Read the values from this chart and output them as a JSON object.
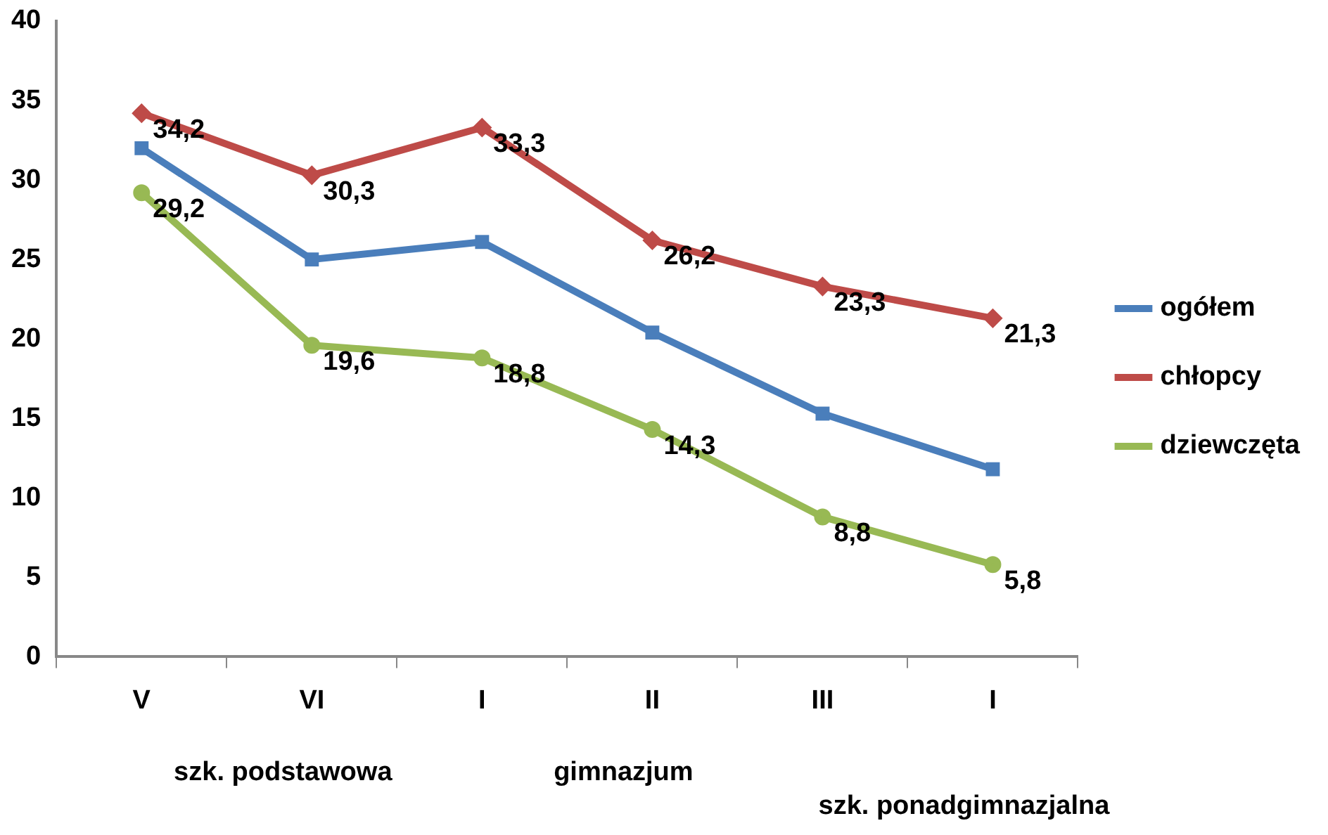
{
  "chart_data": {
    "type": "line",
    "categories": [
      "V",
      "VI",
      "I",
      "II",
      "III",
      "I"
    ],
    "series": [
      {
        "name": "ogółem",
        "color": "#4a7ebb",
        "marker": "square",
        "values": [
          32.0,
          25.0,
          26.1,
          20.4,
          15.3,
          11.8
        ]
      },
      {
        "name": "chłopcy",
        "color": "#be4b48",
        "marker": "diamond",
        "values": [
          34.2,
          30.3,
          33.3,
          26.2,
          23.3,
          21.3
        ],
        "value_labels": [
          "34,2",
          "30,3",
          "33,3",
          "26,2",
          "23,3",
          "21,3"
        ]
      },
      {
        "name": "dziewczęta",
        "color": "#98b954",
        "marker": "circle",
        "values": [
          29.2,
          19.6,
          18.8,
          14.3,
          8.8,
          5.8
        ],
        "value_labels": [
          "29,2",
          "19,6",
          "18,8",
          "14,3",
          "8,8",
          "5,8"
        ]
      }
    ],
    "ylim": [
      0,
      40
    ],
    "yticks": [
      0,
      5,
      10,
      15,
      20,
      25,
      30,
      35,
      40
    ],
    "grid": false,
    "legend": "right",
    "annotations": [
      "szk. podstawowa",
      "gimnazjum",
      "szk. ponadgimnazjalna"
    ]
  }
}
